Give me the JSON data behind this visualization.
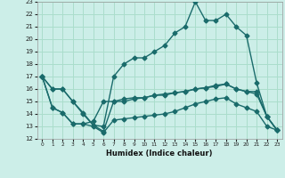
{
  "xlabel": "Humidex (Indice chaleur)",
  "bg_color": "#cceee8",
  "grid_color": "#aaddcc",
  "line_color": "#1a6b6b",
  "xlim": [
    -0.5,
    23.5
  ],
  "ylim": [
    12,
    23
  ],
  "xticks": [
    0,
    1,
    2,
    3,
    4,
    5,
    6,
    7,
    8,
    9,
    10,
    11,
    12,
    13,
    14,
    15,
    16,
    17,
    18,
    19,
    20,
    21,
    22,
    23
  ],
  "yticks": [
    12,
    13,
    14,
    15,
    16,
    17,
    18,
    19,
    20,
    21,
    22,
    23
  ],
  "line1_x": [
    0,
    1,
    2,
    3,
    4,
    5,
    6,
    7,
    8,
    9,
    10,
    11,
    12,
    13,
    14,
    15,
    16,
    17,
    18,
    19,
    20,
    21,
    22,
    23
  ],
  "line1_y": [
    17.0,
    16.0,
    16.0,
    15.0,
    14.0,
    13.1,
    13.0,
    17.0,
    18.0,
    18.5,
    18.5,
    19.0,
    19.5,
    20.5,
    21.0,
    23.0,
    21.5,
    21.5,
    22.0,
    21.0,
    20.3,
    16.5,
    13.8,
    12.7
  ],
  "line2_x": [
    0,
    1,
    2,
    3,
    4,
    5,
    6,
    7,
    8,
    9,
    10,
    11,
    12,
    13,
    14,
    15,
    16,
    17,
    18,
    19,
    20,
    21,
    22,
    23
  ],
  "line2_y": [
    17.0,
    16.0,
    16.0,
    15.0,
    14.1,
    13.1,
    12.6,
    15.0,
    15.0,
    15.2,
    15.3,
    15.5,
    15.6,
    15.7,
    15.8,
    16.0,
    16.1,
    16.3,
    16.4,
    16.0,
    15.8,
    15.8,
    13.8,
    12.7
  ],
  "line3_x": [
    0,
    1,
    2,
    3,
    4,
    5,
    6,
    7,
    8,
    9,
    10,
    11,
    12,
    13,
    14,
    15,
    16,
    17,
    18,
    19,
    20,
    21,
    22,
    23
  ],
  "line3_y": [
    17.0,
    14.5,
    14.1,
    13.2,
    13.2,
    13.4,
    15.0,
    15.0,
    15.2,
    15.3,
    15.3,
    15.5,
    15.5,
    15.7,
    15.8,
    16.0,
    16.1,
    16.2,
    16.4,
    16.0,
    15.8,
    15.6,
    13.8,
    12.7
  ],
  "line4_x": [
    0,
    1,
    2,
    3,
    4,
    5,
    6,
    7,
    8,
    9,
    10,
    11,
    12,
    13,
    14,
    15,
    16,
    17,
    18,
    19,
    20,
    21,
    22,
    23
  ],
  "line4_y": [
    17.0,
    14.5,
    14.1,
    13.2,
    13.2,
    13.0,
    12.5,
    13.5,
    13.6,
    13.7,
    13.8,
    13.9,
    14.0,
    14.2,
    14.5,
    14.8,
    15.0,
    15.2,
    15.3,
    14.8,
    14.5,
    14.2,
    13.0,
    12.7
  ],
  "marker_size": 2.5,
  "line_width": 1.0
}
